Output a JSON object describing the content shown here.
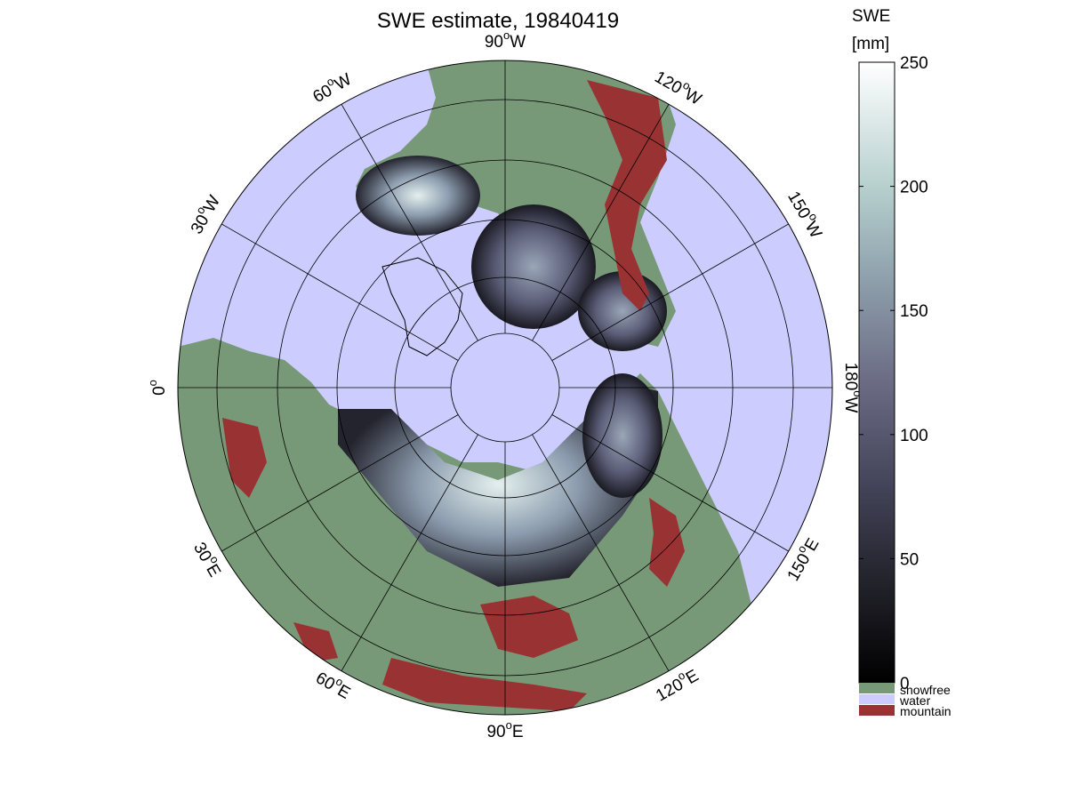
{
  "title": "SWE estimate, 19840419",
  "colorbar": {
    "title_line1": "SWE",
    "title_line2": "[mm]",
    "min": 0,
    "max": 250,
    "ticks": [
      "0",
      "50",
      "100",
      "150",
      "200",
      "250"
    ],
    "category_labels": [
      "snowfree",
      "water",
      "mountain"
    ],
    "category_colors": {
      "snowfree": "#779977",
      "water": "#ccccff",
      "mountain": "#993333"
    },
    "gradient_colors": [
      "#000000",
      "#202028",
      "#44445a",
      "#6e7088",
      "#8ea0ac",
      "#b6d0ce",
      "#ffffff"
    ]
  },
  "map": {
    "projection": "north polar stereographic",
    "meridian_labels": [
      {
        "deg": "0",
        "suffix": ""
      },
      {
        "deg": "30",
        "suffix": "W"
      },
      {
        "deg": "60",
        "suffix": "W"
      },
      {
        "deg": "90",
        "suffix": "W"
      },
      {
        "deg": "120",
        "suffix": "W"
      },
      {
        "deg": "150",
        "suffix": "W"
      },
      {
        "deg": "180",
        "suffix": "W"
      },
      {
        "deg": "150",
        "suffix": "E"
      },
      {
        "deg": "120",
        "suffix": "E"
      },
      {
        "deg": "90",
        "suffix": "E"
      },
      {
        "deg": "60",
        "suffix": "E"
      },
      {
        "deg": "30",
        "suffix": "E"
      }
    ],
    "ocean_color": "#ccccff",
    "land_color": "#779977",
    "mountain_color": "#993333",
    "grid": true
  }
}
